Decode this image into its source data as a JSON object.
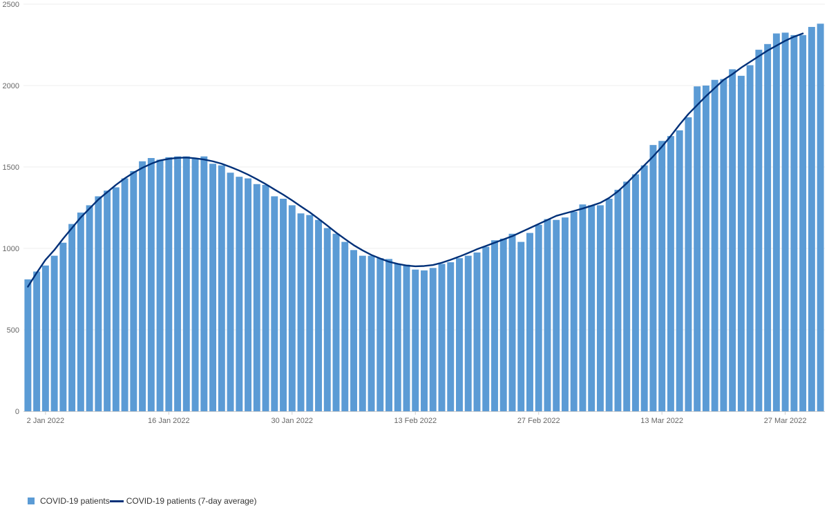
{
  "chart_data": {
    "type": "bar",
    "x_tick_labels": [
      "2 Jan 2022",
      "16 Jan 2022",
      "30 Jan 2022",
      "13 Feb 2022",
      "27 Feb 2022",
      "13 Mar 2022",
      "27 Mar 2022"
    ],
    "y_tick_labels": [
      "0",
      "500",
      "1000",
      "1500",
      "2000",
      "2500"
    ],
    "ylim": [
      0,
      2500
    ],
    "grid": "horizontal",
    "legend_position": "bottom-left",
    "series": [
      {
        "name": "COVID-19 patients",
        "kind": "bar",
        "color": "#5b9bd5",
        "x_start": "2021-12-31",
        "values": [
          810,
          858,
          895,
          955,
          1035,
          1150,
          1220,
          1265,
          1320,
          1355,
          1375,
          1430,
          1475,
          1535,
          1555,
          1545,
          1560,
          1565,
          1565,
          1550,
          1565,
          1520,
          1510,
          1465,
          1440,
          1430,
          1395,
          1390,
          1320,
          1305,
          1265,
          1215,
          1205,
          1175,
          1125,
          1090,
          1040,
          990,
          955,
          955,
          940,
          935,
          905,
          900,
          870,
          865,
          880,
          905,
          915,
          940,
          955,
          975,
          1010,
          1050,
          1060,
          1090,
          1040,
          1095,
          1145,
          1180,
          1175,
          1190,
          1225,
          1270,
          1265,
          1265,
          1305,
          1360,
          1410,
          1455,
          1510,
          1635,
          1660,
          1690,
          1725,
          1805,
          1995,
          2000,
          2035,
          2040,
          2100,
          2060,
          2125,
          2220,
          2255,
          2320,
          2325,
          2310,
          2310,
          2360,
          2380
        ]
      },
      {
        "name": "COVID-19 patients (7-day average)",
        "kind": "line",
        "color": "#003078",
        "x_start": "2021-12-31",
        "values": [
          765,
          850,
          930,
          990,
          1060,
          1125,
          1190,
          1245,
          1300,
          1345,
          1390,
          1430,
          1465,
          1495,
          1520,
          1540,
          1550,
          1556,
          1558,
          1553,
          1546,
          1535,
          1520,
          1500,
          1478,
          1453,
          1425,
          1395,
          1362,
          1330,
          1295,
          1258,
          1222,
          1182,
          1140,
          1097,
          1058,
          1020,
          988,
          960,
          938,
          918,
          905,
          895,
          890,
          892,
          898,
          912,
          930,
          950,
          972,
          995,
          1015,
          1035,
          1055,
          1075,
          1100,
          1125,
          1150,
          1175,
          1200,
          1215,
          1230,
          1245,
          1262,
          1280,
          1310,
          1350,
          1400,
          1455,
          1510,
          1565,
          1625,
          1690,
          1760,
          1825,
          1880,
          1935,
          1985,
          2035,
          2070,
          2110,
          2145,
          2180,
          2215,
          2245,
          2275,
          2300,
          2320
        ]
      }
    ]
  }
}
